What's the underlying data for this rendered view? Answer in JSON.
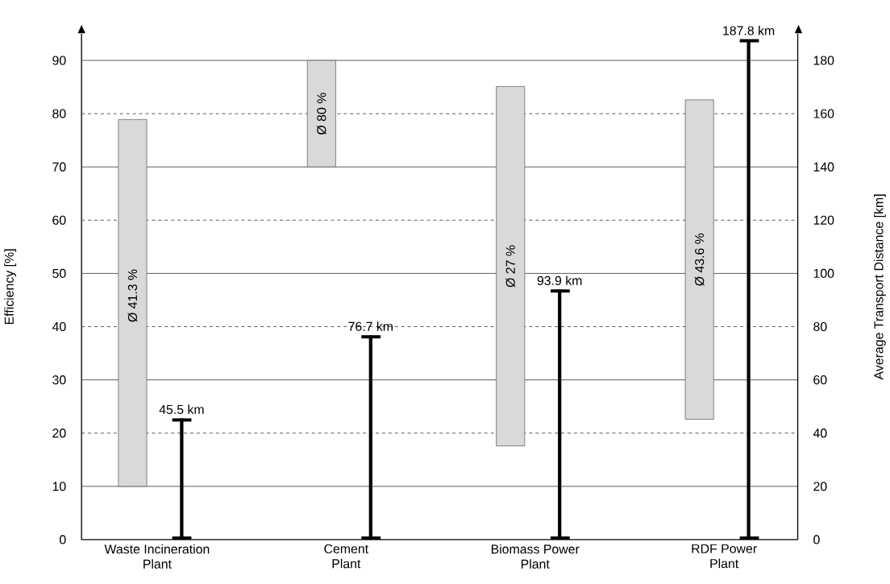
{
  "chart_data": {
    "type": "bar",
    "categories": [
      "Waste Incineration Plant",
      "Cement Plant",
      "Biomass Power Plant",
      "RDF Power Plant"
    ],
    "series": [
      {
        "color": "#d9d9d9",
        "base": [
          10,
          70,
          17.6,
          22.6
        ],
        "values": [
          68.9,
          20,
          67.5,
          60
        ]
      },
      {
        "type": "bar",
        "axis": "y2",
        "color": "#000000",
        "values": [
          45.5,
          76.7,
          93.9,
          187.8
        ],
        "value_labels": [
          "45.5 km",
          "76.7 km",
          "93.9 km",
          "187.8 km"
        ]
      }
    ],
    "ylabel": "Efficiency [%]",
    "y2label": "Average Transport Distance [km]",
    "ylim": [
      0,
      95
    ],
    "yticks": [
      0,
      10,
      20,
      30,
      40,
      50,
      60,
      70,
      80,
      90
    ],
    "y2lim": [
      0,
      190
    ],
    "y2ticks": [
      0,
      20,
      40,
      60,
      80,
      100,
      120,
      140,
      160,
      180
    ],
    "grid": "y",
    "annotations": [
      "Ø 41.3 %",
      "Ø 80 %",
      "Ø 27 %",
      "Ø 43.6 %"
    ]
  }
}
